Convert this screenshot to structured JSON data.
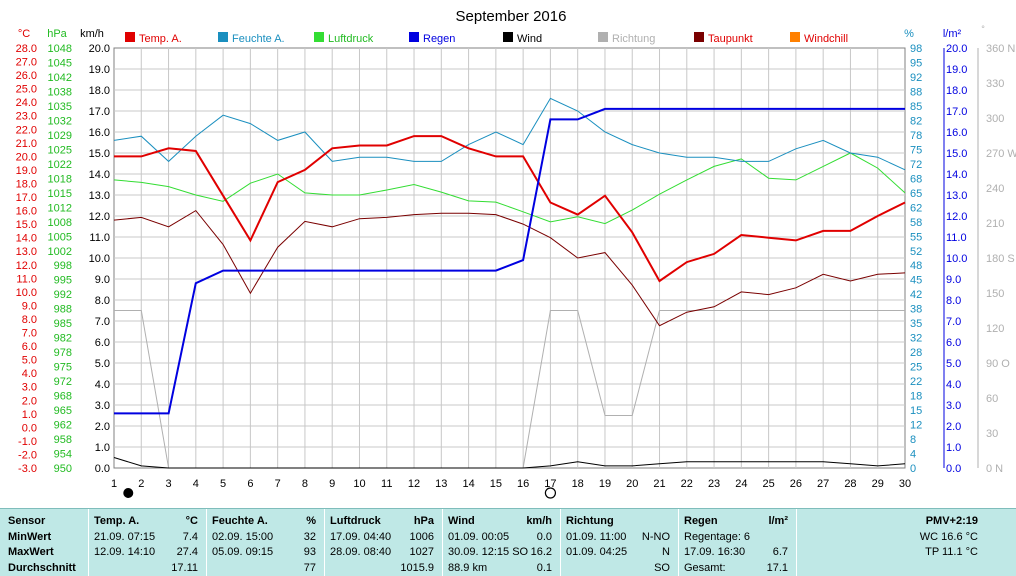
{
  "title": "September 2016",
  "colors": {
    "temp": "#e00000",
    "humidity": "#1a8fbf",
    "pressure": "#33dd33",
    "rain": "#0000e0",
    "wind": "#000000",
    "direction": "#b0b0b0",
    "dewpoint": "#7a0000",
    "windchill": "#ff8000",
    "grid": "#c8c8c8"
  },
  "axis_headers": {
    "temp": "°C",
    "pressure": "hPa",
    "wind": "km/h",
    "humidity": "%",
    "rain": "l/m²",
    "direction": "°"
  },
  "legend": [
    "Temp. A.",
    "Feuchte A.",
    "Luftdruck",
    "Regen",
    "Wind",
    "Richtung",
    "Taupunkt",
    "Windchill"
  ],
  "chart_data": {
    "type": "line",
    "title": "September 2016",
    "x": [
      1,
      2,
      3,
      4,
      5,
      6,
      7,
      8,
      9,
      10,
      11,
      12,
      13,
      14,
      15,
      16,
      17,
      18,
      19,
      20,
      21,
      22,
      23,
      24,
      25,
      26,
      27,
      28,
      29,
      30
    ],
    "axes": {
      "temp": {
        "label": "°C",
        "range": [
          -3,
          28
        ],
        "ticks": [
          "28.0",
          "27.0",
          "26.0",
          "25.0",
          "24.0",
          "23.0",
          "22.0",
          "21.0",
          "20.0",
          "19.0",
          "18.0",
          "17.0",
          "16.0",
          "15.0",
          "14.0",
          "13.0",
          "12.0",
          "11.0",
          "10.0",
          "9.0",
          "8.0",
          "7.0",
          "6.0",
          "5.0",
          "4.0",
          "3.0",
          "2.0",
          "1.0",
          "0.0",
          "-1.0",
          "-2.0",
          "-3.0"
        ]
      },
      "pressure": {
        "label": "hPa",
        "range": [
          950,
          1050
        ],
        "ticks": [
          "1048",
          "1045",
          "1042",
          "1038",
          "1035",
          "1032",
          "1029",
          "1025",
          "1022",
          "1018",
          "1015",
          "1012",
          "1008",
          "1005",
          "1002",
          "998",
          "995",
          "992",
          "988",
          "985",
          "982",
          "978",
          "975",
          "972",
          "968",
          "965",
          "962",
          "958",
          "954",
          "950"
        ]
      },
      "wind": {
        "label": "km/h",
        "range": [
          0,
          20
        ],
        "ticks": [
          "20.0",
          "19.0",
          "18.0",
          "17.0",
          "16.0",
          "15.0",
          "14.0",
          "13.0",
          "12.0",
          "11.0",
          "10.0",
          "9.0",
          "8.0",
          "7.0",
          "6.0",
          "5.0",
          "4.0",
          "3.0",
          "2.0",
          "1.0",
          "0.0"
        ]
      },
      "humidity": {
        "label": "%",
        "range": [
          0,
          100
        ],
        "ticks": [
          "98",
          "95",
          "92",
          "88",
          "85",
          "82",
          "78",
          "75",
          "72",
          "68",
          "65",
          "62",
          "58",
          "55",
          "52",
          "48",
          "45",
          "42",
          "38",
          "35",
          "32",
          "28",
          "25",
          "22",
          "18",
          "15",
          "12",
          "8",
          "4",
          "0"
        ]
      },
      "rain": {
        "label": "l/m²",
        "range": [
          0,
          20
        ],
        "ticks": [
          "20.0",
          "19.0",
          "18.0",
          "17.0",
          "16.0",
          "15.0",
          "14.0",
          "13.0",
          "12.0",
          "11.0",
          "10.0",
          "9.0",
          "8.0",
          "7.0",
          "6.0",
          "5.0",
          "4.0",
          "3.0",
          "2.0",
          "1.0",
          "0.0"
        ]
      },
      "direction": {
        "label": "°",
        "range": [
          0,
          360
        ],
        "ticks": [
          "360 N",
          "330",
          "300",
          "270 W",
          "240",
          "210",
          "180 S",
          "150",
          "120",
          "90 O",
          "60",
          "30",
          "0 N"
        ]
      }
    },
    "grid": true,
    "legend_position": "top",
    "series": [
      {
        "name": "Temp. A.",
        "axis": "temp",
        "color": "#e00000",
        "values": [
          20.0,
          20.0,
          20.6,
          20.4,
          17.1,
          13.8,
          18.1,
          19.0,
          20.6,
          20.8,
          20.8,
          21.5,
          21.5,
          20.6,
          20.0,
          20.0,
          16.6,
          15.7,
          17.1,
          14.4,
          10.8,
          12.2,
          12.8,
          14.2,
          14.0,
          13.8,
          14.5,
          14.5,
          15.6,
          16.6
        ]
      },
      {
        "name": "Feuchte A.",
        "axis": "humidity",
        "color": "#1a8fbf",
        "values": [
          78,
          79,
          73,
          79,
          84,
          82,
          78,
          80,
          73,
          74,
          74,
          73,
          73,
          77,
          80,
          77,
          88,
          85,
          80,
          77,
          75,
          74,
          74,
          73,
          73,
          76,
          78,
          75,
          74,
          71
        ]
      },
      {
        "name": "Luftdruck",
        "axis": "pressure",
        "color": "#33dd33",
        "values": [
          1018.6,
          1018,
          1017,
          1015,
          1013.5,
          1017.8,
          1020,
          1015.5,
          1015,
          1015,
          1016.2,
          1017.5,
          1015.7,
          1013.6,
          1013.3,
          1011,
          1008.6,
          1009.8,
          1008.2,
          1011.4,
          1015.2,
          1018.6,
          1021.8,
          1023.6,
          1019,
          1018.6,
          1021.8,
          1025,
          1021.4,
          1015.5
        ]
      },
      {
        "name": "Regen",
        "axis": "rain",
        "color": "#0000e0",
        "values": [
          2.6,
          2.6,
          2.6,
          8.8,
          9.4,
          9.4,
          9.4,
          9.4,
          9.4,
          9.4,
          9.4,
          9.4,
          9.4,
          9.4,
          9.4,
          9.9,
          16.6,
          16.6,
          17.1,
          17.1,
          17.1,
          17.1,
          17.1,
          17.1,
          17.1,
          17.1,
          17.1,
          17.1,
          17.1,
          17.1
        ]
      },
      {
        "name": "Wind",
        "axis": "wind",
        "color": "#000000",
        "values": [
          0.5,
          0.1,
          0.0,
          0.0,
          0.0,
          0.0,
          0.0,
          0.0,
          0.0,
          0.0,
          0.0,
          0.0,
          0.0,
          0.0,
          0.0,
          0.0,
          0.1,
          0.3,
          0.1,
          0.1,
          0.2,
          0.3,
          0.3,
          0.3,
          0.3,
          0.3,
          0.3,
          0.2,
          0.1,
          0.2
        ]
      },
      {
        "name": "Richtung",
        "axis": "direction",
        "color": "#b0b0b0",
        "values": [
          135,
          135,
          0,
          null,
          null,
          null,
          null,
          null,
          null,
          null,
          null,
          null,
          null,
          null,
          null,
          0,
          135,
          135,
          45,
          45,
          135,
          135,
          135,
          135,
          135,
          135,
          135,
          135,
          135,
          135
        ]
      },
      {
        "name": "Taupunkt",
        "axis": "temp",
        "color": "#7a0000",
        "values": [
          15.3,
          15.5,
          14.8,
          16.0,
          13.5,
          9.9,
          13.3,
          15.2,
          14.8,
          15.4,
          15.5,
          15.7,
          15.8,
          15.8,
          15.7,
          15.0,
          14.0,
          12.5,
          12.9,
          10.5,
          7.5,
          8.5,
          8.9,
          10.0,
          9.8,
          10.3,
          11.3,
          10.8,
          11.3,
          11.4
        ]
      }
    ],
    "markers": [
      {
        "x": 2,
        "type": "new-moon"
      },
      {
        "x": 17,
        "type": "full-moon"
      }
    ]
  },
  "stats": {
    "sensor": {
      "header": "Sensor",
      "rows": [
        "MinWert",
        "MaxWert",
        "Durchschnitt"
      ]
    },
    "temp": {
      "header": "Temp. A.",
      "unit": "°C",
      "min_time": "21.09.  07:15",
      "min_val": "7.4",
      "max_time": "12.09.  14:10",
      "max_val": "27.4",
      "avg": "17.11"
    },
    "humidity": {
      "header": "Feuchte A.",
      "unit": "%",
      "min_time": "02.09.  15:00",
      "min_val": "32",
      "max_time": "05.09.  09:15",
      "max_val": "93",
      "avg": "77"
    },
    "pressure": {
      "header": "Luftdruck",
      "unit": "hPa",
      "min_time": "17.09.  04:40",
      "min_val": "1006",
      "max_time": "28.09.  08:40",
      "max_val": "1027",
      "avg": "1015.9"
    },
    "wind": {
      "header": "Wind",
      "unit": "km/h",
      "min_time": "01.09.  00:05",
      "min_val": "0.0",
      "max_time": "30.09.  12:15 SO",
      "max_val": "16.2",
      "avg_left": "88.9 km",
      "avg": "0.1"
    },
    "direction": {
      "header": "Richtung",
      "min_time": "01.09.  11:00",
      "min_val": "N-NO",
      "max_time": "01.09.  04:25",
      "max_val": "N",
      "avg": "SO"
    },
    "rain": {
      "header": "Regen",
      "unit": "l/m²",
      "r1": "Regentage: 6",
      "r2_left": "17.09.  16:30",
      "r2_val": "6.7",
      "r3_left": "Gesamt:",
      "r3_val": "17.1"
    },
    "pmv": {
      "header": "PMV+2:19",
      "wc": "WC 16.6 °C",
      "tp": "TP 11.1 °C"
    }
  }
}
